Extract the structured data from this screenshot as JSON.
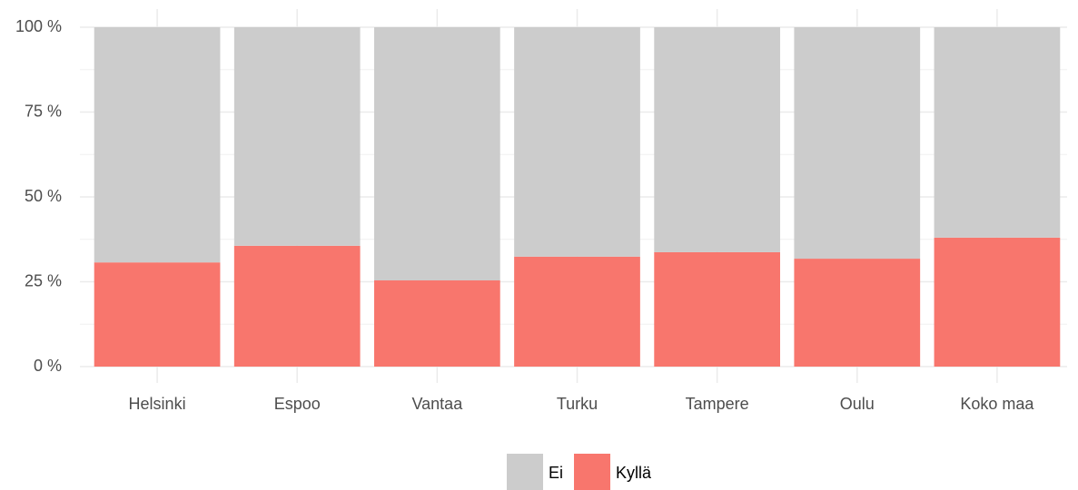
{
  "chart_data": {
    "type": "stacked_bar",
    "categories": [
      "Helsinki",
      "Espoo",
      "Vantaa",
      "Turku",
      "Tampere",
      "Oulu",
      "Koko maa"
    ],
    "series": [
      {
        "name": "Ei",
        "color": "#cccccc",
        "values": [
          69.3,
          64.4,
          74.6,
          67.6,
          66.3,
          68.2,
          62.0
        ]
      },
      {
        "name": "Kyllä",
        "color": "#f8766d",
        "values": [
          30.7,
          35.6,
          25.4,
          32.4,
          33.7,
          31.8,
          38.0
        ]
      }
    ],
    "ylim": [
      0,
      100
    ],
    "yticks": [
      {
        "value": 0,
        "label": "0 %"
      },
      {
        "value": 25,
        "label": "25 %"
      },
      {
        "value": 50,
        "label": "50 %"
      },
      {
        "value": 75,
        "label": "75 %"
      },
      {
        "value": 100,
        "label": "100 %"
      }
    ],
    "yminorticks": [
      12.5,
      37.5,
      62.5,
      87.5
    ],
    "grid": true,
    "legend": "bottom"
  }
}
